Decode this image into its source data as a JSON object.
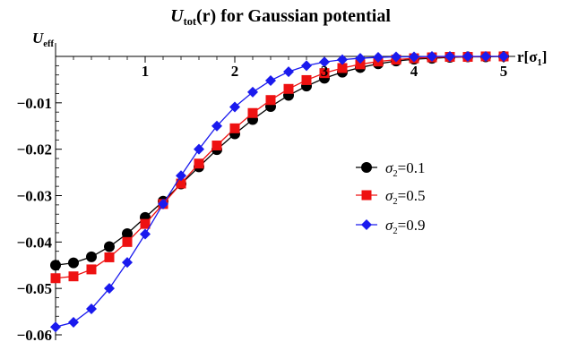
{
  "chart_data": {
    "type": "line",
    "title": {
      "main": "U",
      "sub": "tot",
      "rest": "(r) for Gaussian potential"
    },
    "ylabel": {
      "main": "U",
      "sub": "eff"
    },
    "xlabel": {
      "main": "r[σ",
      "sub": "1",
      "rest": "]"
    },
    "xlim": [
      0,
      5
    ],
    "ylim": [
      -0.06,
      0
    ],
    "x_ticks": [
      1,
      2,
      3,
      4,
      5
    ],
    "x_tick_labels": [
      "1",
      "2",
      "3",
      "4",
      "5"
    ],
    "y_ticks": [
      -0.01,
      -0.02,
      -0.03,
      -0.04,
      -0.05,
      -0.06
    ],
    "y_tick_labels": [
      "−0.01",
      "−0.02",
      "−0.03",
      "−0.04",
      "−0.05",
      "−0.06"
    ],
    "grid": false,
    "legend_position": "right-middle",
    "x": [
      0,
      0.2,
      0.4,
      0.6,
      0.8,
      1.0,
      1.2,
      1.4,
      1.6,
      1.8,
      2.0,
      2.2,
      2.4,
      2.6,
      2.8,
      3.0,
      3.2,
      3.4,
      3.6,
      3.8,
      4.0,
      4.2,
      4.4,
      4.6,
      4.8,
      5.0
    ],
    "series": [
      {
        "name": "σ2=0.1",
        "legend_sym": "σ",
        "legend_sub": "2",
        "legend_val": "=0.1",
        "color": "#000000",
        "marker": "circle",
        "values": [
          -0.045,
          -0.0445,
          -0.0432,
          -0.041,
          -0.0382,
          -0.0347,
          -0.0312,
          -0.0275,
          -0.0238,
          -0.0201,
          -0.0167,
          -0.0136,
          -0.0108,
          -0.0084,
          -0.0064,
          -0.0047,
          -0.0034,
          -0.0024,
          -0.0016,
          -0.001,
          -0.0006,
          -0.0004,
          -0.0002,
          -0.0001,
          -0.0001,
          0.0
        ]
      },
      {
        "name": "σ2=0.5",
        "legend_sym": "σ",
        "legend_sub": "2",
        "legend_val": "=0.5",
        "color": "#ee1111",
        "marker": "square",
        "values": [
          -0.0478,
          -0.0474,
          -0.0459,
          -0.0433,
          -0.04,
          -0.0361,
          -0.0318,
          -0.0274,
          -0.0231,
          -0.0192,
          -0.0155,
          -0.0122,
          -0.0094,
          -0.007,
          -0.0051,
          -0.0036,
          -0.0025,
          -0.0017,
          -0.0011,
          -0.0007,
          -0.0004,
          -0.0002,
          -0.0001,
          -0.0001,
          0.0,
          0.0
        ]
      },
      {
        "name": "σ2=0.9",
        "legend_sym": "σ",
        "legend_sub": "2",
        "legend_val": "=0.9",
        "color": "#1a1aee",
        "marker": "diamond",
        "values": [
          -0.0583,
          -0.0573,
          -0.0544,
          -0.05,
          -0.0444,
          -0.0383,
          -0.0318,
          -0.0257,
          -0.02,
          -0.015,
          -0.0109,
          -0.0077,
          -0.0052,
          -0.0033,
          -0.002,
          -0.0012,
          -0.0007,
          -0.0004,
          -0.0002,
          -0.0001,
          -0.0001,
          0.0,
          0.0,
          0.0,
          0.0,
          0.0
        ]
      }
    ]
  }
}
